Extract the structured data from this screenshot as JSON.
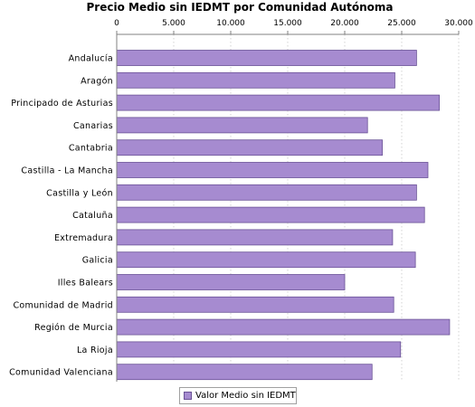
{
  "chart_data": {
    "type": "bar",
    "orientation": "horizontal",
    "title": "Precio Medio sin IEDMT por Comunidad Autónoma",
    "categories": [
      "Andalucía",
      "Aragón",
      "Principado de Asturias",
      "Canarias",
      "Cantabria",
      "Castilla - La Mancha",
      "Castilla y León",
      "Cataluña",
      "Extremadura",
      "Galicia",
      "Illes Balears",
      "Comunidad de Madrid",
      "Región de Murcia",
      "La Rioja",
      "Comunidad Valenciana"
    ],
    "series": [
      {
        "name": "Valor Medio sin IEDMT",
        "values": [
          26300,
          24400,
          28300,
          22000,
          23300,
          27300,
          26300,
          27000,
          24200,
          26200,
          20000,
          24300,
          29200,
          24900,
          22400
        ]
      }
    ],
    "xlim": [
      0,
      30000
    ],
    "x_ticks": [
      "0",
      "5.000",
      "10.000",
      "15.000",
      "20.000",
      "25.000",
      "30.000"
    ],
    "x_tick_values": [
      0,
      5000,
      10000,
      15000,
      20000,
      25000,
      30000
    ],
    "x_axis_position": "top",
    "grid": true,
    "legend_position": "bottom",
    "colors": {
      "bar_fill": "#a68bd0",
      "bar_stroke": "#6a5296"
    }
  }
}
